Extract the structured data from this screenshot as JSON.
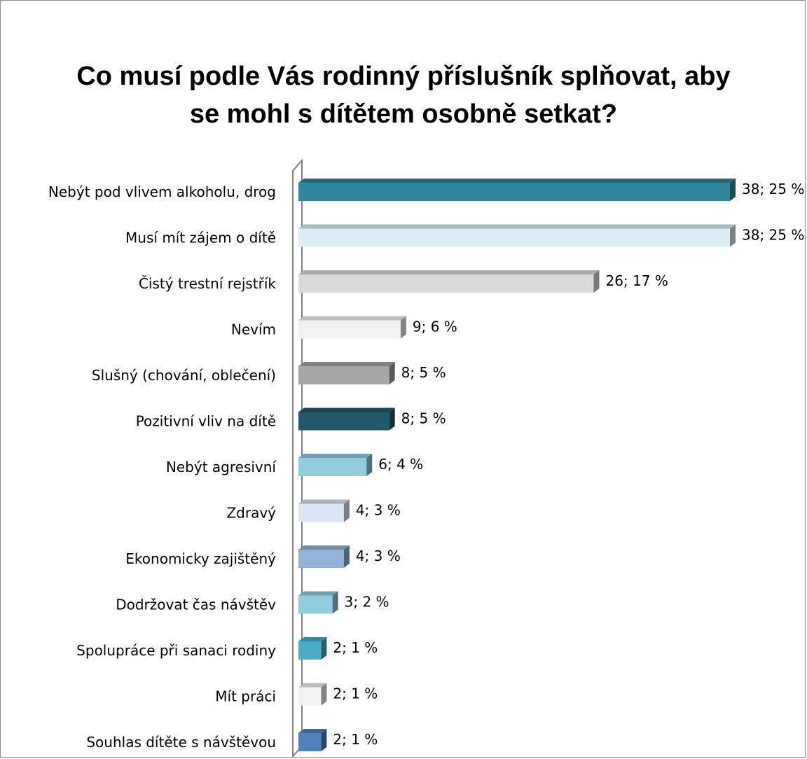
{
  "title_lines": [
    "Co musí podle Vás rodinný příslušník splňovat, aby",
    "se mohl s dítětem osobně setkat?"
  ],
  "chart_data": {
    "type": "bar",
    "orientation": "horizontal",
    "categories": [
      "Nebýt pod vlivem alkoholu, drog",
      "Musí mít zájem o dítě",
      "Čistý trestní rejstřík",
      "Nevím",
      "Slušný (chování, oblečení)",
      "Pozitivní vliv na dítě",
      "Nebýt agresivní",
      "Zdravý",
      "Ekonomicky zajištěný",
      "Dodržovat čas návštěv",
      "Spolupráce při sanaci rodiny",
      "Mít práci",
      "Souhlas dítěte s návštěvou"
    ],
    "values": [
      38,
      38,
      26,
      9,
      8,
      8,
      6,
      4,
      4,
      3,
      2,
      2,
      2
    ],
    "data_labels": [
      "38; 25 %",
      "38; 25 %",
      "26; 17  %",
      "9; 6  %",
      "8; 5 %",
      "8; 5 %",
      "6; 4 %",
      "4; 3 %",
      "4; 3 %",
      "3; 2 %",
      "2; 1 %",
      "2; 1 %",
      "2; 1 %"
    ],
    "colors": [
      "#31859c",
      "#dbeef4",
      "#d9d9d9",
      "#f2f2f2",
      "#a6a6a6",
      "#215968",
      "#93cddd",
      "#dce6f2",
      "#95b3d7",
      "#93cddd",
      "#4bacc6",
      "#f2f2f2",
      "#4f81bd"
    ],
    "xlim": [
      0,
      38
    ],
    "grid": false,
    "legend": "none"
  }
}
